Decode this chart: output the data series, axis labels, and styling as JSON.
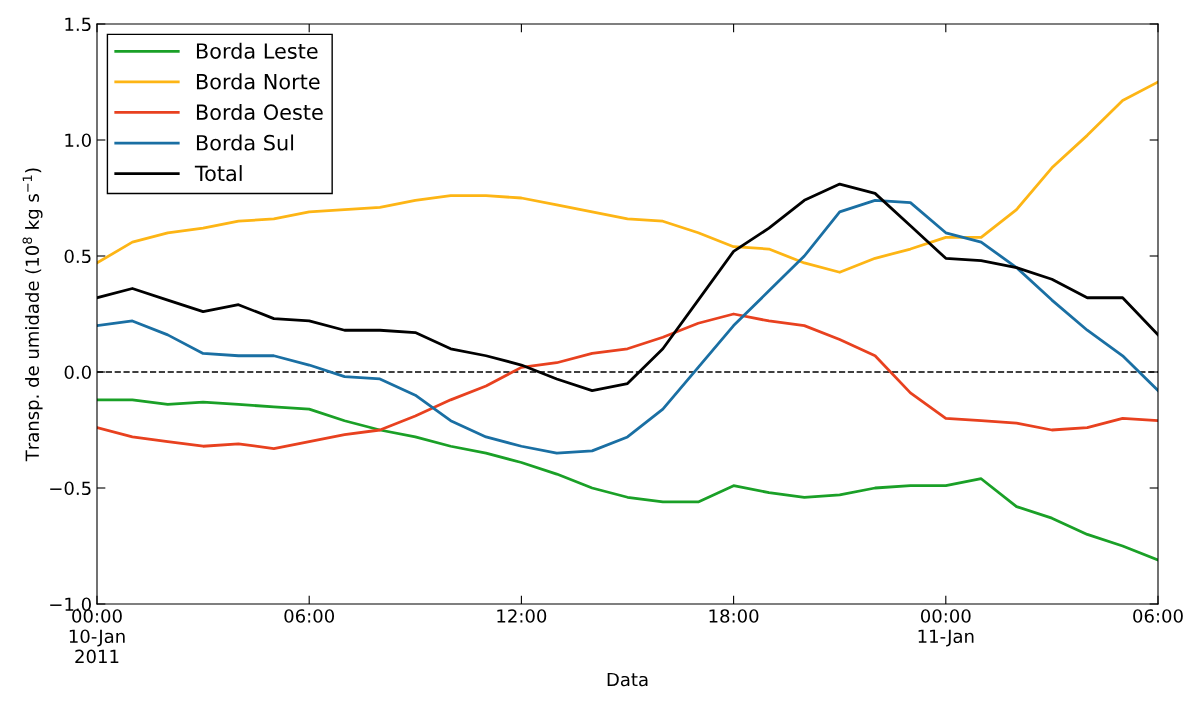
{
  "chart_data": {
    "type": "line",
    "xlabel": "Data",
    "ylabel": "Transp. de umidade (10$^{8}$ kg s$^{−1}$)",
    "x": [
      "2011-01-10T00:00",
      "2011-01-10T01:00",
      "2011-01-10T02:00",
      "2011-01-10T03:00",
      "2011-01-10T04:00",
      "2011-01-10T05:00",
      "2011-01-10T06:00",
      "2011-01-10T07:00",
      "2011-01-10T08:00",
      "2011-01-10T09:00",
      "2011-01-10T10:00",
      "2011-01-10T11:00",
      "2011-01-10T12:00",
      "2011-01-10T13:00",
      "2011-01-10T14:00",
      "2011-01-10T15:00",
      "2011-01-10T16:00",
      "2011-01-10T17:00",
      "2011-01-10T18:00",
      "2011-01-10T19:00",
      "2011-01-10T20:00",
      "2011-01-10T21:00",
      "2011-01-10T22:00",
      "2011-01-10T23:00",
      "2011-01-11T00:00",
      "2011-01-11T01:00",
      "2011-01-11T02:00",
      "2011-01-11T03:00",
      "2011-01-11T04:00",
      "2011-01-11T05:00",
      "2011-01-11T06:00"
    ],
    "xlim": [
      "2011-01-10T00:00",
      "2011-01-11T06:00"
    ],
    "xticks": [
      {
        "value": "2011-01-10T00:00",
        "label": "00:00\n10-Jan\n2011"
      },
      {
        "value": "2011-01-10T06:00",
        "label": "06:00"
      },
      {
        "value": "2011-01-10T12:00",
        "label": "12:00"
      },
      {
        "value": "2011-01-10T18:00",
        "label": "18:00"
      },
      {
        "value": "2011-01-11T00:00",
        "label": "00:00\n11-Jan"
      },
      {
        "value": "2011-01-11T06:00",
        "label": "06:00"
      }
    ],
    "ylim": [
      -1.0,
      1.5
    ],
    "yticks": [
      {
        "value": -1.0,
        "label": "−1.0"
      },
      {
        "value": -0.5,
        "label": "−0.5"
      },
      {
        "value": 0.0,
        "label": "0.0"
      },
      {
        "value": 0.5,
        "label": "0.5"
      },
      {
        "value": 1.0,
        "label": "1.0"
      },
      {
        "value": 1.5,
        "label": "1.5"
      }
    ],
    "grid": false,
    "legend": "top left",
    "line_style": "solid",
    "ref_lines": [
      {
        "axis": "y",
        "value": 0,
        "color": "#000000",
        "line_style": "dashed"
      }
    ],
    "series": [
      {
        "name": "Borda Leste",
        "color": "#1aa027",
        "values": [
          -0.12,
          -0.12,
          -0.14,
          -0.13,
          -0.14,
          -0.15,
          -0.16,
          -0.21,
          -0.25,
          -0.28,
          -0.32,
          -0.35,
          -0.39,
          -0.44,
          -0.5,
          -0.54,
          -0.56,
          -0.56,
          -0.49,
          -0.52,
          -0.54,
          -0.53,
          -0.5,
          -0.49,
          -0.49,
          -0.46,
          -0.58,
          -0.63,
          -0.7,
          -0.75,
          -0.81
        ]
      },
      {
        "name": "Borda Norte",
        "color": "#fdb515",
        "values": [
          0.47,
          0.56,
          0.6,
          0.62,
          0.65,
          0.66,
          0.69,
          0.7,
          0.71,
          0.74,
          0.76,
          0.76,
          0.75,
          0.72,
          0.69,
          0.66,
          0.65,
          0.6,
          0.54,
          0.53,
          0.47,
          0.43,
          0.49,
          0.53,
          0.58,
          0.58,
          0.7,
          0.88,
          1.02,
          1.17,
          1.25
        ]
      },
      {
        "name": "Borda Oeste",
        "color": "#e8411f",
        "values": [
          -0.24,
          -0.28,
          -0.3,
          -0.32,
          -0.31,
          -0.33,
          -0.3,
          -0.27,
          -0.25,
          -0.19,
          -0.12,
          -0.06,
          0.02,
          0.04,
          0.08,
          0.1,
          0.15,
          0.21,
          0.25,
          0.22,
          0.2,
          0.14,
          0.07,
          -0.09,
          -0.2,
          -0.21,
          -0.22,
          -0.25,
          -0.24,
          -0.2,
          -0.21
        ]
      },
      {
        "name": "Borda Sul",
        "color": "#1a6fa3",
        "values": [
          0.2,
          0.22,
          0.16,
          0.08,
          0.07,
          0.07,
          0.03,
          -0.02,
          -0.03,
          -0.1,
          -0.21,
          -0.28,
          -0.32,
          -0.35,
          -0.34,
          -0.28,
          -0.16,
          0.02,
          0.2,
          0.35,
          0.5,
          0.69,
          0.74,
          0.73,
          0.6,
          0.56,
          0.45,
          0.31,
          0.18,
          0.07,
          -0.08
        ]
      },
      {
        "name": "Total",
        "color": "#000000",
        "values": [
          0.32,
          0.36,
          0.31,
          0.26,
          0.29,
          0.23,
          0.22,
          0.18,
          0.18,
          0.17,
          0.1,
          0.07,
          0.03,
          -0.03,
          -0.08,
          -0.05,
          0.1,
          0.31,
          0.52,
          0.62,
          0.74,
          0.81,
          0.77,
          0.63,
          0.49,
          0.48,
          0.45,
          0.4,
          0.32,
          0.32,
          0.16
        ]
      }
    ]
  }
}
